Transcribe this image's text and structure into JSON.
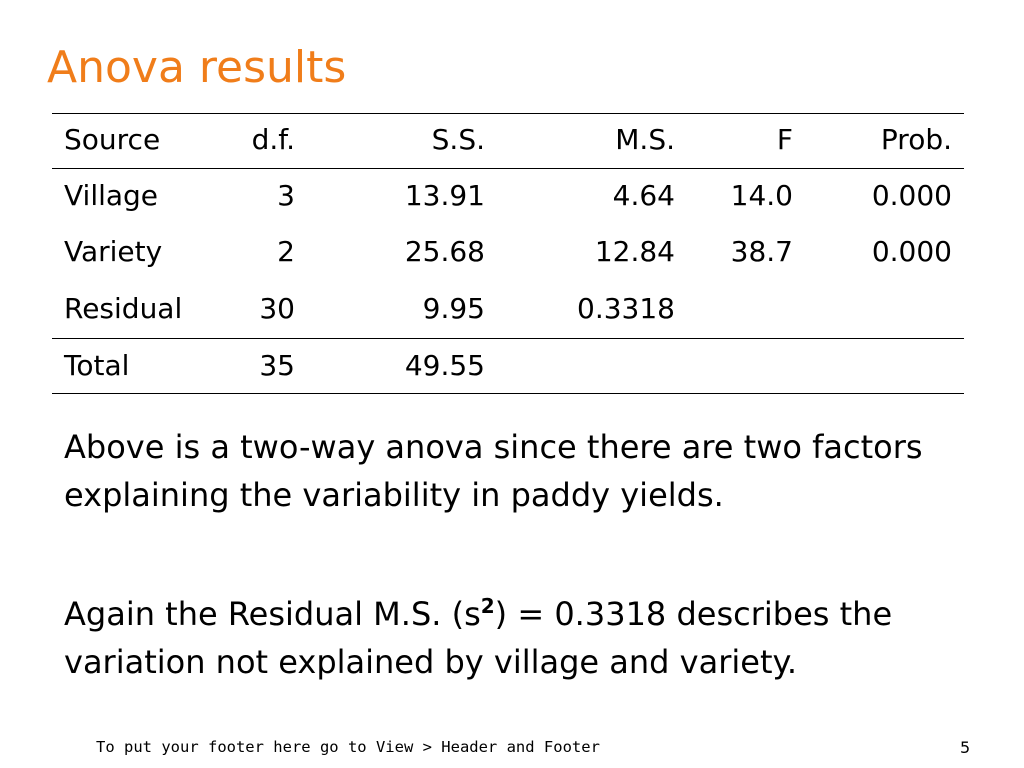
{
  "title": "Anova results",
  "table": {
    "header": [
      "Source",
      "d.f.",
      "S.S.",
      "M.S.",
      "F",
      "Prob."
    ],
    "rows": [
      [
        "Village",
        "3",
        "13.91",
        "4.64",
        "14.0",
        "0.000"
      ],
      [
        "Variety",
        "2",
        "25.68",
        "12.84",
        "38.7",
        "0.000"
      ],
      [
        "Residual",
        "30",
        "9.95",
        "0.3318"
      ],
      [
        "Total",
        "35",
        "49.55"
      ]
    ]
  },
  "paragraphs": [
    {
      "parts": [
        "Above is a two-way anova since there are two factors explaining the variability in paddy yields."
      ]
    },
    {
      "parts": [
        "Again the Residual M.S. (s",
        "2",
        ") = 0.3318 describes the variation not explained by village and variety."
      ]
    }
  ],
  "footer": "To put your footer here go to View > Header and Footer",
  "page_number": "5"
}
